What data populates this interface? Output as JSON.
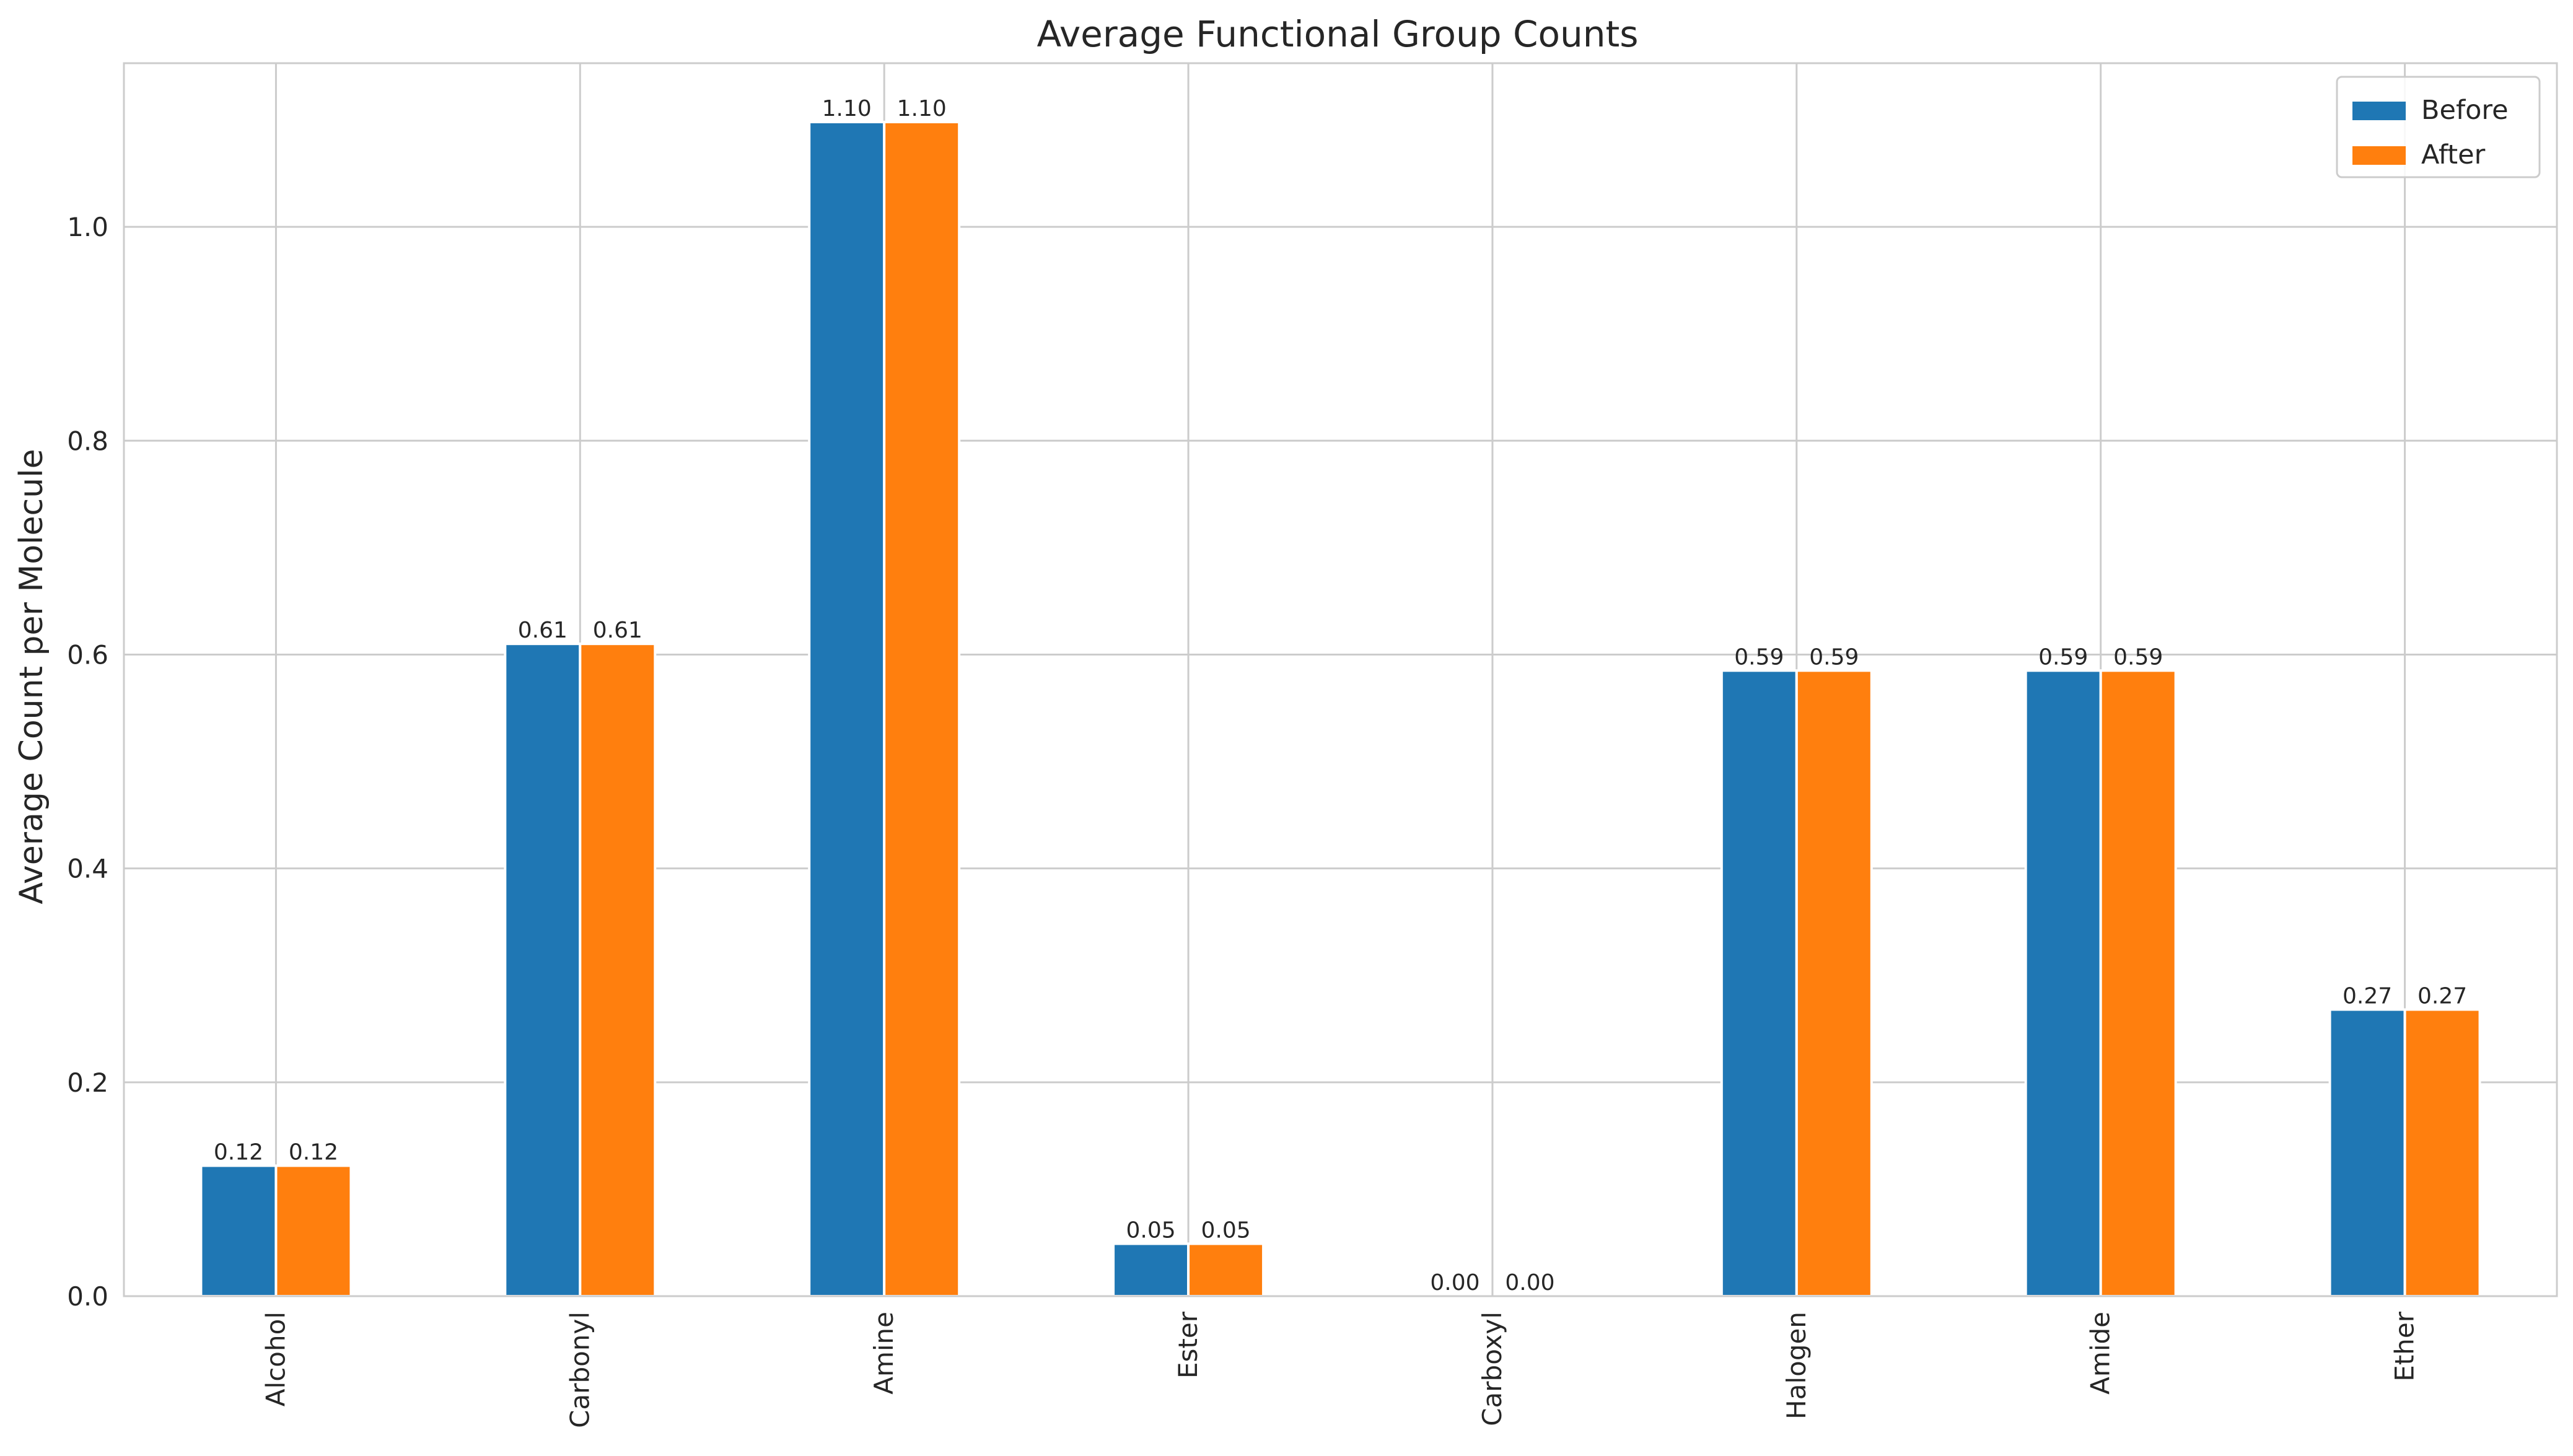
{
  "chart_data": {
    "type": "bar",
    "title": "Average Functional Group Counts",
    "xlabel": "",
    "ylabel": "Average Count per Molecule",
    "categories": [
      "Alcohol",
      "Carbonyl",
      "Amine",
      "Ester",
      "Carboxyl",
      "Halogen",
      "Amide",
      "Ether"
    ],
    "series": [
      {
        "name": "Before",
        "color": "#1f77b4",
        "values": [
          0.122,
          0.61,
          1.098,
          0.049,
          0.0,
          0.585,
          0.585,
          0.268
        ],
        "labels": [
          "0.12",
          "0.61",
          "1.10",
          "0.05",
          "0.00",
          "0.59",
          "0.59",
          "0.27"
        ]
      },
      {
        "name": "After",
        "color": "#ff7f0e",
        "values": [
          0.122,
          0.61,
          1.098,
          0.049,
          0.0,
          0.585,
          0.585,
          0.268
        ],
        "labels": [
          "0.12",
          "0.61",
          "1.10",
          "0.05",
          "0.00",
          "0.59",
          "0.59",
          "0.27"
        ]
      }
    ],
    "ylim": [
      0,
      1.153
    ],
    "yticks": [
      0.0,
      0.2,
      0.4,
      0.6,
      0.8,
      1.0
    ],
    "ytick_labels": [
      "0.0",
      "0.2",
      "0.4",
      "0.6",
      "0.8",
      "1.0"
    ],
    "grid": true,
    "legend_position": "top-right"
  }
}
